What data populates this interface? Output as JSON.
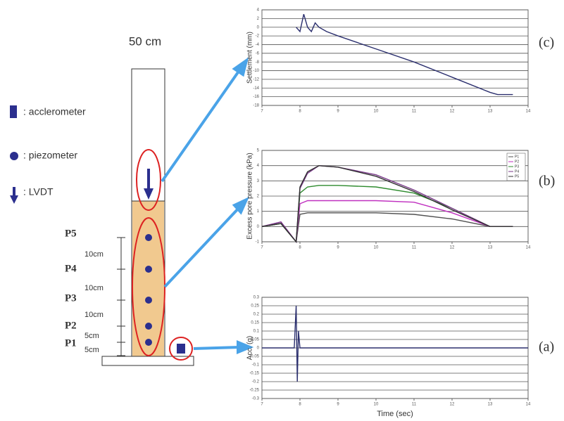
{
  "diagram": {
    "title": "50 cm",
    "legend": [
      ": acclerometer",
      ": piezometer",
      ": LVDT"
    ],
    "sensors": [
      "P5",
      "P4",
      "P3",
      "P2",
      "P1"
    ],
    "spacings": [
      "10cm",
      "10cm",
      "10cm",
      "5cm",
      "5cm"
    ]
  },
  "chart_data": [
    {
      "type": "line",
      "panel": "(c)",
      "y_label": "Settlement (mm)",
      "x": [
        7.9,
        8.0,
        8.1,
        8.2,
        8.3,
        8.4,
        8.5,
        8.7,
        9.0,
        10.0,
        11.0,
        12.0,
        13.0,
        13.2,
        13.6
      ],
      "series": [
        {
          "color": "#2b2f6e",
          "values": [
            0,
            -1,
            3,
            0,
            -1,
            1,
            0,
            -1,
            -2,
            -5,
            -8,
            -11.5,
            -15,
            -15.5,
            -15.5
          ]
        }
      ],
      "xlim": [
        7,
        14
      ],
      "xticks": [
        7,
        8,
        9,
        10,
        11,
        12,
        13,
        14
      ],
      "ylim": [
        -18,
        4
      ],
      "yticks": [
        4,
        2,
        0,
        -2,
        -4,
        -6,
        -8,
        -10,
        -12,
        -14,
        -16,
        -18
      ],
      "grid": true
    },
    {
      "type": "line",
      "panel": "(b)",
      "y_label": "Excess pore pressure (kPa)",
      "x": [
        7,
        7.5,
        7.9,
        8.0,
        8.2,
        8.5,
        9,
        10,
        11,
        12,
        13,
        13.6
      ],
      "series": [
        {
          "name": "P1",
          "color": "#505050",
          "values": [
            0,
            0.2,
            -1,
            0.8,
            0.9,
            0.9,
            0.9,
            0.9,
            0.8,
            0.5,
            0,
            0
          ]
        },
        {
          "name": "P2",
          "color": "#c030c0",
          "values": [
            0,
            0.3,
            -1,
            1.5,
            1.7,
            1.7,
            1.7,
            1.7,
            1.6,
            0.9,
            0,
            0
          ]
        },
        {
          "name": "P3",
          "color": "#2e8b2e",
          "values": [
            0,
            0.2,
            -1,
            2.2,
            2.6,
            2.7,
            2.7,
            2.6,
            2.2,
            1.2,
            0,
            0
          ]
        },
        {
          "name": "P4",
          "color": "#7a3a8a",
          "values": [
            0,
            0.3,
            -1,
            2.5,
            3.5,
            4,
            3.9,
            3.4,
            2.4,
            1.2,
            0,
            0
          ]
        },
        {
          "name": "P5",
          "color": "#303030",
          "values": [
            0,
            0.2,
            -1,
            2.6,
            3.6,
            4,
            3.9,
            3.3,
            2.3,
            1.1,
            0,
            0
          ]
        }
      ],
      "xlim": [
        7,
        14
      ],
      "xticks": [
        7,
        8,
        9,
        10,
        11,
        12,
        13,
        14
      ],
      "ylim": [
        -1,
        5
      ],
      "yticks": [
        5,
        4,
        3,
        2,
        1,
        0,
        -1
      ],
      "grid": true,
      "legend": "top-right"
    },
    {
      "type": "line",
      "panel": "(a)",
      "y_label": "Acc. (g)",
      "x_label": "Time (sec)",
      "x": [
        7,
        7.85,
        7.9,
        7.93,
        7.96,
        8.0,
        14
      ],
      "series": [
        {
          "color": "#2b2f6e",
          "values": [
            0,
            0,
            0.25,
            -0.2,
            0.1,
            0,
            0
          ]
        }
      ],
      "xlim": [
        7,
        14
      ],
      "xticks": [
        7,
        8,
        9,
        10,
        11,
        12,
        13,
        14
      ],
      "ylim": [
        -0.3,
        0.3
      ],
      "yticks": [
        0.3,
        0.25,
        0.2,
        0.15,
        0.1,
        0.05,
        0,
        -0.05,
        -0.1,
        -0.15,
        -0.2,
        -0.25,
        -0.3
      ],
      "grid": true
    }
  ]
}
